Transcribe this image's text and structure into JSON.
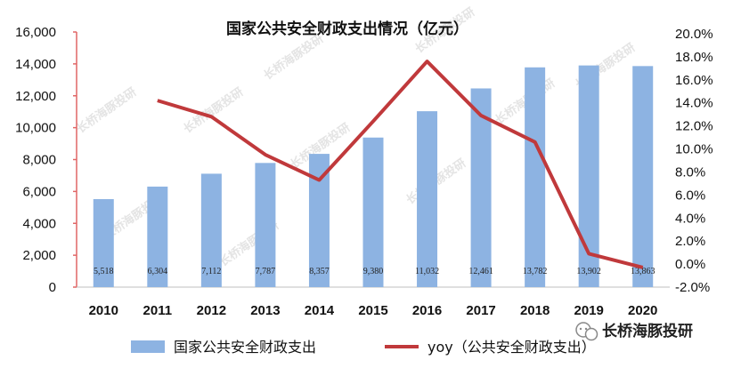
{
  "chart_data": {
    "type": "bar",
    "title": "国家公共安全财政支出情况（亿元）",
    "categories": [
      "2010",
      "2011",
      "2012",
      "2013",
      "2014",
      "2015",
      "2016",
      "2017",
      "2018",
      "2019",
      "2020"
    ],
    "series": [
      {
        "name": "国家公共安全财政支出",
        "type": "bar",
        "axis": "left",
        "color": "#8db3e2",
        "values": [
          5518,
          6304,
          7112,
          7787,
          8357,
          9380,
          11032,
          12461,
          13782,
          13902,
          13863
        ],
        "labels": [
          "5,518",
          "6,304",
          "7,112",
          "7,787",
          "8,357",
          "9,380",
          "11,032",
          "12,461",
          "13,782",
          "13,902",
          "13,863"
        ]
      },
      {
        "name": "yoy（公共安全财政支出）",
        "type": "line",
        "axis": "right",
        "color": "#c0393b",
        "x": [
          "2011",
          "2012",
          "2013",
          "2014",
          "2015",
          "2016",
          "2017",
          "2018",
          "2019",
          "2020"
        ],
        "values": [
          14.2,
          12.8,
          9.5,
          7.3,
          12.4,
          17.6,
          12.9,
          10.6,
          0.9,
          -0.3
        ]
      }
    ],
    "y_left": {
      "ylim": [
        0,
        16000
      ],
      "ticks": [
        "0",
        "2,000",
        "4,000",
        "6,000",
        "8,000",
        "10,000",
        "12,000",
        "14,000",
        "16,000"
      ]
    },
    "y_right": {
      "ylim": [
        -2,
        20
      ],
      "ticks": [
        "-2.0%",
        "0.0%",
        "2.0%",
        "4.0%",
        "6.0%",
        "8.0%",
        "10.0%",
        "12.0%",
        "14.0%",
        "16.0%",
        "18.0%",
        "20.0%"
      ]
    },
    "legend_position": "bottom",
    "grid": false
  },
  "watermark": "长桥海豚投研",
  "brand": {
    "icon": "wechat-icon",
    "text": "长桥海豚投研"
  }
}
